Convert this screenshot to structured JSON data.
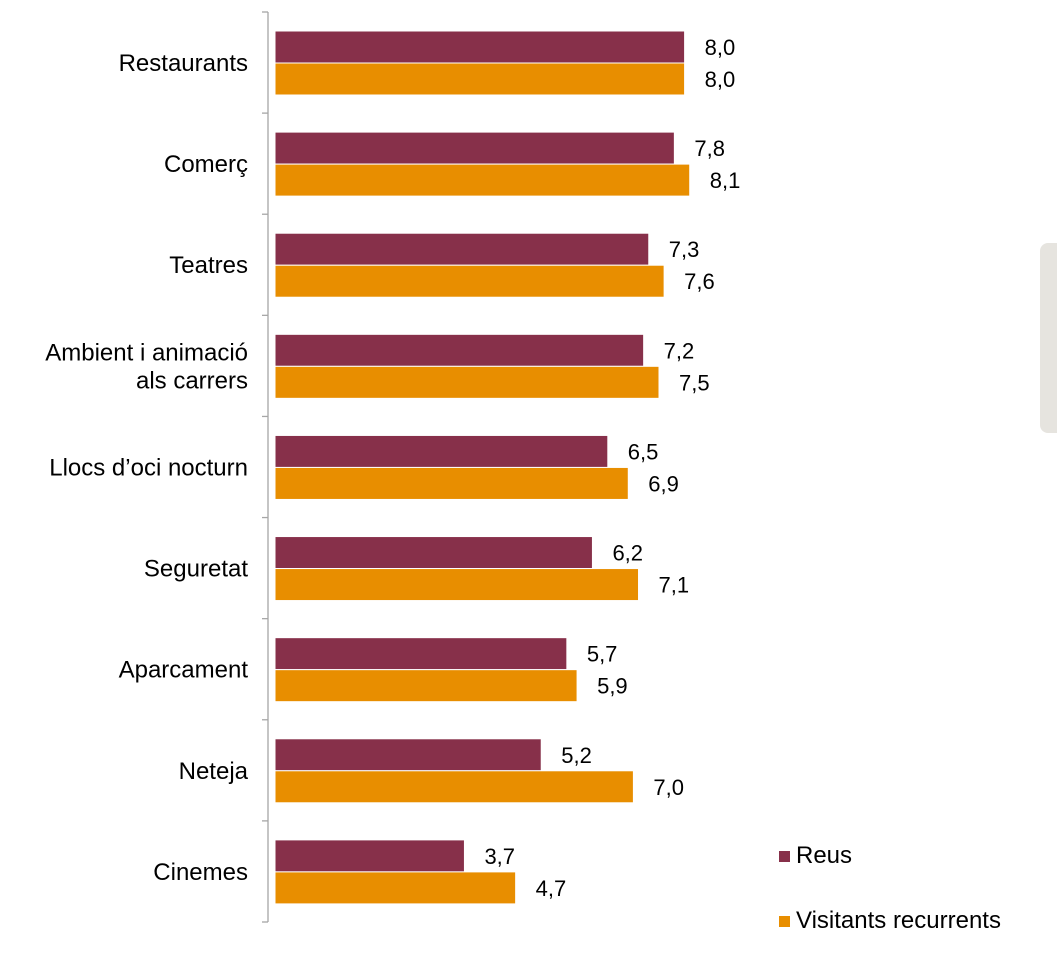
{
  "chart_data": {
    "type": "bar",
    "orientation": "horizontal",
    "categories": [
      "Restaurants",
      "Comerç",
      "Teatres",
      "Ambient i animació als carrers",
      "Llocs d’oci nocturn",
      "Seguretat",
      "Aparcament",
      "Neteja",
      "Cinemes"
    ],
    "category_lines": [
      [
        "Restaurants"
      ],
      [
        "Comerç"
      ],
      [
        "Teatres"
      ],
      [
        "Ambient i animació",
        "als carrers"
      ],
      [
        "Llocs d’oci nocturn"
      ],
      [
        "Seguretat"
      ],
      [
        "Aparcament"
      ],
      [
        "Neteja"
      ],
      [
        "Cinemes"
      ]
    ],
    "series": [
      {
        "name": "Reus",
        "color": "#87304a",
        "values": [
          8.0,
          7.8,
          7.3,
          7.2,
          6.5,
          6.2,
          5.7,
          5.2,
          3.7
        ],
        "labels": [
          "8,0",
          "7,8",
          "7,3",
          "7,2",
          "6,5",
          "6,2",
          "5,7",
          "5,2",
          "3,7"
        ]
      },
      {
        "name": "Visitants recurrents",
        "color": "#e88e00",
        "values": [
          8.0,
          8.1,
          7.6,
          7.5,
          6.9,
          7.1,
          5.9,
          7.0,
          4.7
        ],
        "labels": [
          "8,0",
          "8,1",
          "7,6",
          "7,5",
          "6,9",
          "7,1",
          "5,9",
          "7,0",
          "4,7"
        ]
      }
    ],
    "xlim": [
      0,
      10
    ],
    "legend_position": "bottom-right",
    "grid": false,
    "title": "",
    "xlabel": "",
    "ylabel": ""
  },
  "legend": {
    "reus_label": "Reus",
    "visitants_label": "Visitants recurrents"
  }
}
